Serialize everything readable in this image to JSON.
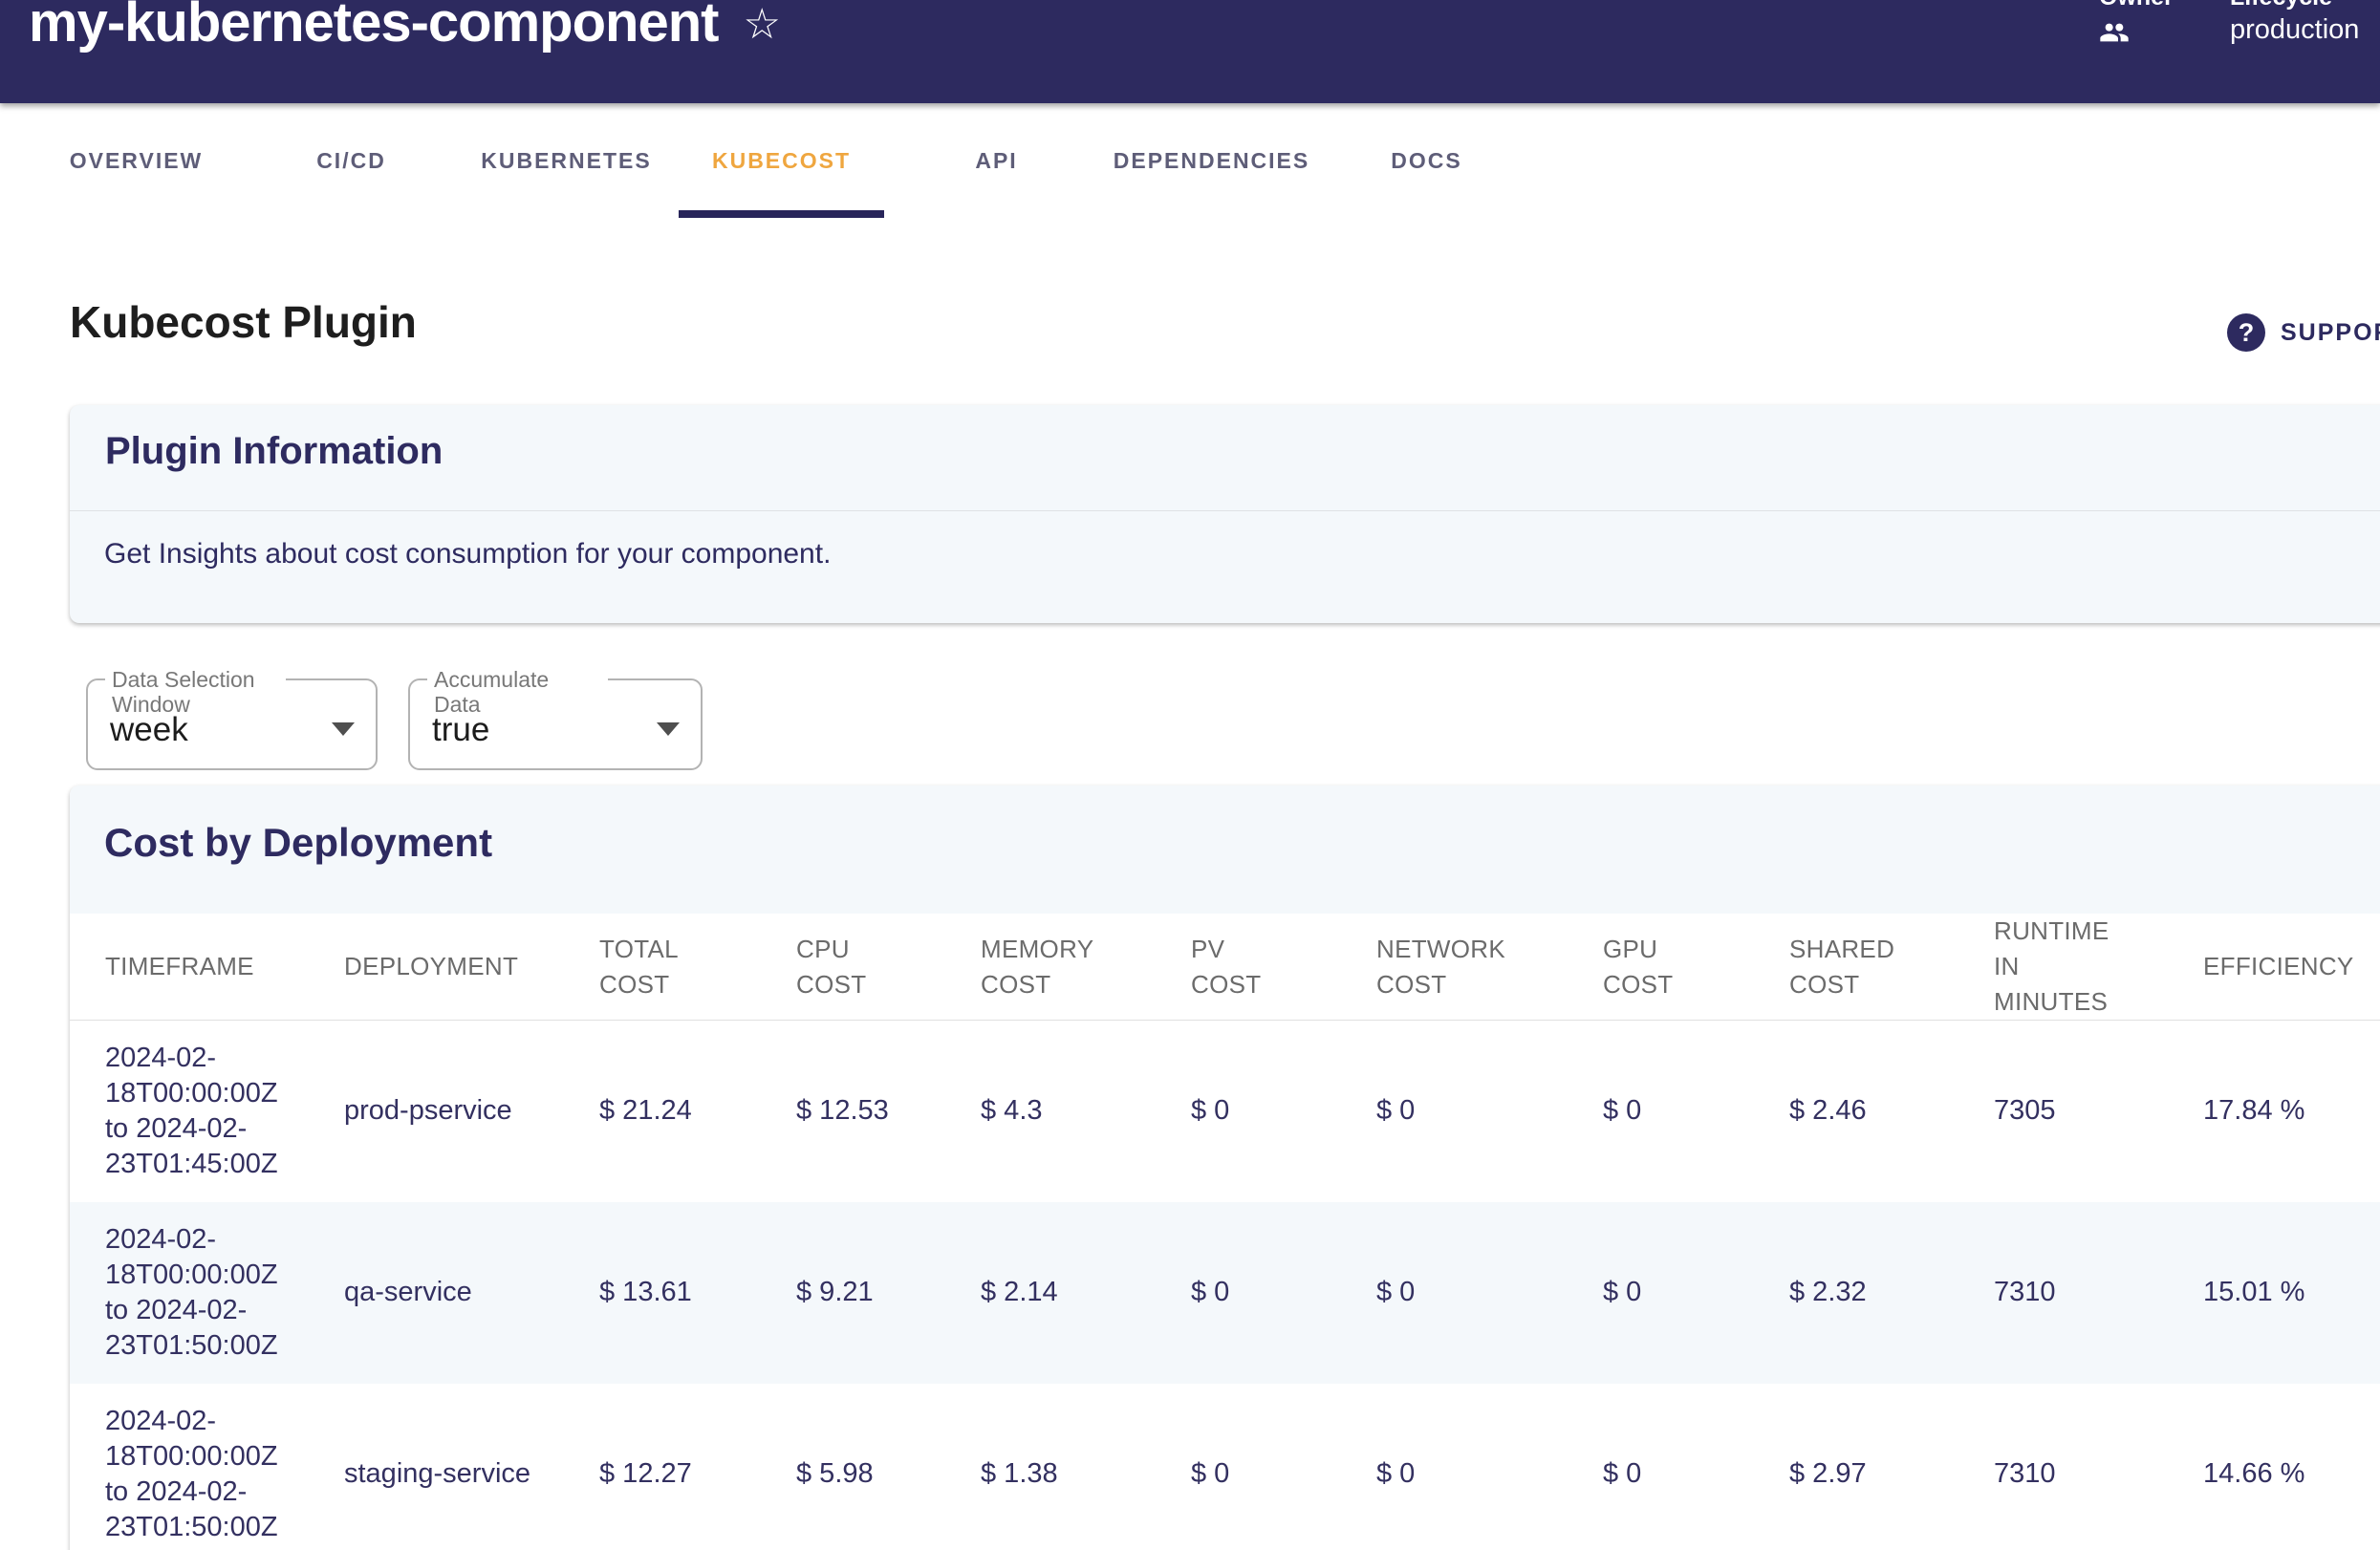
{
  "header": {
    "title": "my-kubernetes-component",
    "star_icon": "☆",
    "owner": {
      "label": "Owner"
    },
    "lifecycle": {
      "label": "Lifecycle",
      "value": "production"
    }
  },
  "tabs": [
    {
      "label": "OVERVIEW",
      "active": false
    },
    {
      "label": "CI/CD",
      "active": false
    },
    {
      "label": "KUBERNETES",
      "active": false
    },
    {
      "label": "KUBECOST",
      "active": true
    },
    {
      "label": "API",
      "active": false
    },
    {
      "label": "DEPENDENCIES",
      "active": false
    },
    {
      "label": "DOCS",
      "active": false
    }
  ],
  "page": {
    "title": "Kubecost Plugin",
    "support_label": "SUPPORT"
  },
  "plugin_info": {
    "title": "Plugin Information",
    "description": "Get Insights about cost consumption for your component."
  },
  "filters": {
    "window": {
      "label": "Data Selection Window",
      "value": "week"
    },
    "accumulate": {
      "label": "Accumulate Data",
      "value": "true"
    }
  },
  "cost_table": {
    "title": "Cost by Deployment",
    "columns": [
      "TIMEFRAME",
      "DEPLOYMENT",
      "TOTAL\nCOST",
      "CPU\nCOST",
      "MEMORY\nCOST",
      "PV\nCOST",
      "NETWORK\nCOST",
      "GPU\nCOST",
      "SHARED\nCOST",
      "RUNTIME\nIN\nMINUTES",
      "EFFICIENCY"
    ],
    "rows": [
      {
        "timeframe": "2024-02-18T00:00:00Z to 2024-02-23T01:45:00Z",
        "deployment": "prod-pservice",
        "total_cost": "$ 21.24",
        "cpu_cost": "$ 12.53",
        "memory_cost": "$ 4.3",
        "pv_cost": "$ 0",
        "network_cost": "$ 0",
        "gpu_cost": "$ 0",
        "shared_cost": "$ 2.46",
        "runtime_minutes": "7305",
        "efficiency": "17.84 %"
      },
      {
        "timeframe": "2024-02-18T00:00:00Z to 2024-02-23T01:50:00Z",
        "deployment": "qa-service",
        "total_cost": "$ 13.61",
        "cpu_cost": "$ 9.21",
        "memory_cost": "$ 2.14",
        "pv_cost": "$ 0",
        "network_cost": "$ 0",
        "gpu_cost": "$ 0",
        "shared_cost": "$ 2.32",
        "runtime_minutes": "7310",
        "efficiency": "15.01 %"
      },
      {
        "timeframe": "2024-02-18T00:00:00Z to 2024-02-23T01:50:00Z",
        "deployment": "staging-service",
        "total_cost": "$ 12.27",
        "cpu_cost": "$ 5.98",
        "memory_cost": "$ 1.38",
        "pv_cost": "$ 0",
        "network_cost": "$ 0",
        "gpu_cost": "$ 0",
        "shared_cost": "$ 2.97",
        "runtime_minutes": "7310",
        "efficiency": "14.66 %"
      }
    ]
  },
  "colors": {
    "header_bg": "#2D2A5F",
    "active_tab": "#EFA63F",
    "tab_indicator": "#28255A",
    "card_bg": "#F4F8FB",
    "navy_text": "#2E2B60",
    "table_header_text": "#6B6B6B"
  }
}
